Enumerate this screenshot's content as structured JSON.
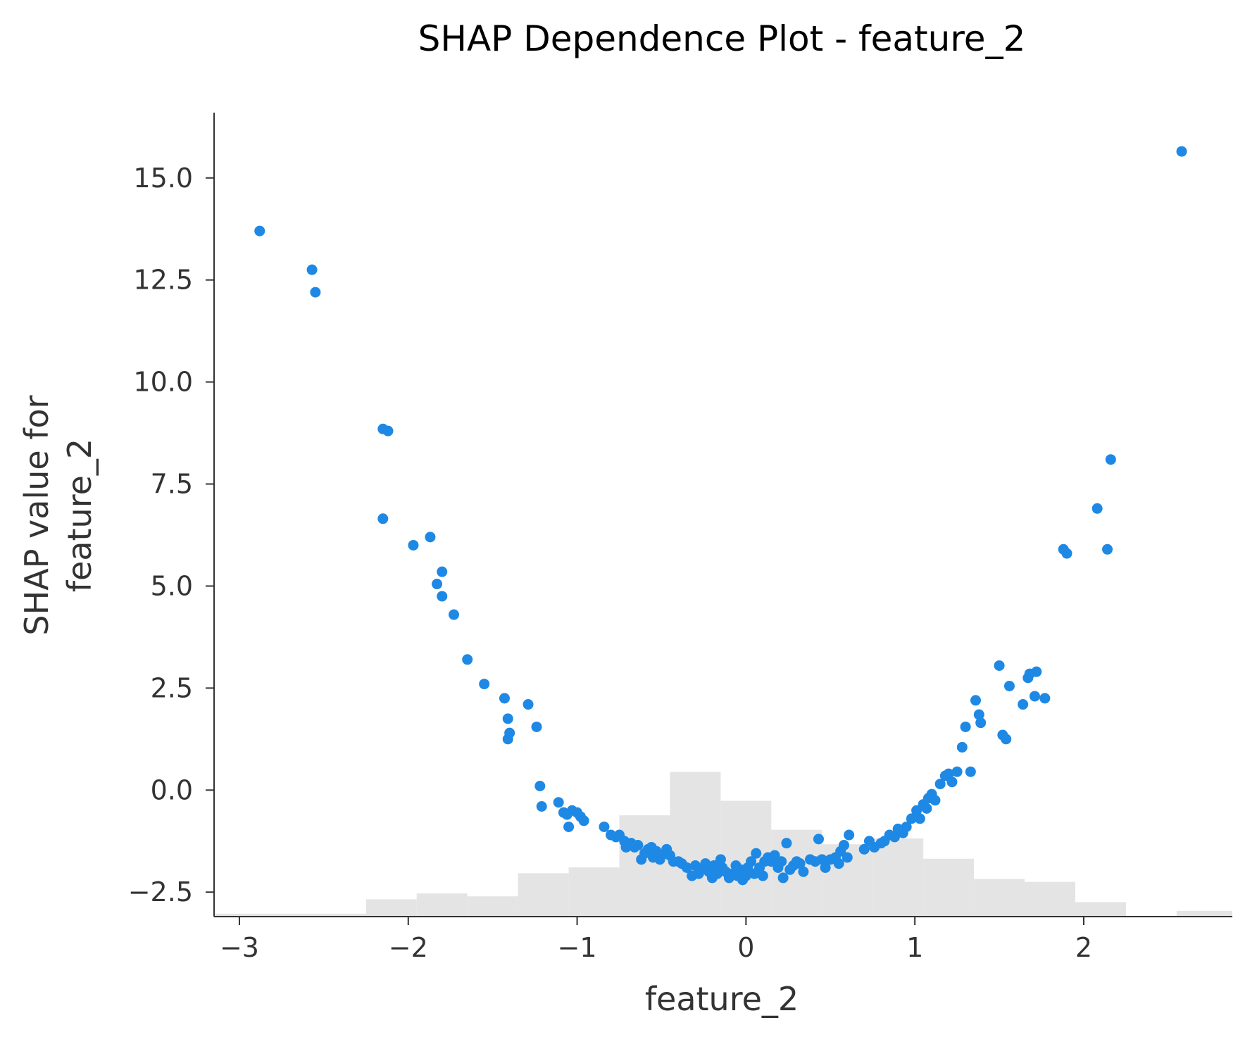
{
  "chart_data": {
    "type": "scatter",
    "title": "SHAP Dependence Plot - feature_2",
    "xlabel": "feature_2",
    "ylabel": [
      "SHAP value for",
      "feature_2"
    ],
    "xlim": [
      -3.15,
      2.88
    ],
    "ylim": [
      -3.1,
      16.6
    ],
    "xticks": [
      -3,
      -2,
      -1,
      0,
      1,
      2
    ],
    "xtick_labels": [
      "−3",
      "−2",
      "−1",
      "0",
      "1",
      "2"
    ],
    "yticks": [
      -2.5,
      0,
      2.5,
      5,
      7.5,
      10,
      12.5,
      15
    ],
    "ytick_labels": [
      "−2.5",
      "0.0",
      "2.5",
      "5.0",
      "7.5",
      "10.0",
      "12.5",
      "15.0"
    ],
    "grid": false,
    "colors": {
      "points": "#1E88E5",
      "histogram": "#E4E4E4",
      "axis": "#333333",
      "text": "#333333",
      "title": "#000000"
    },
    "histogram": {
      "bin_edges": [
        -3.15,
        -2.85,
        -2.55,
        -2.25,
        -1.95,
        -1.65,
        -1.35,
        -1.05,
        -0.75,
        -0.45,
        -0.15,
        0.15,
        0.45,
        0.75,
        1.05,
        1.35,
        1.65,
        1.95,
        2.25,
        2.55,
        2.88
      ],
      "counts": [
        1,
        1,
        1,
        6,
        8,
        7,
        15,
        17,
        35,
        50,
        40,
        30,
        25,
        27,
        20,
        13,
        12,
        5,
        0,
        2
      ]
    },
    "series": [
      {
        "name": "feature_2",
        "points": [
          [
            -2.88,
            13.7
          ],
          [
            -2.57,
            12.75
          ],
          [
            -2.55,
            12.2
          ],
          [
            -2.15,
            8.85
          ],
          [
            -2.12,
            8.8
          ],
          [
            -2.15,
            6.65
          ],
          [
            -1.97,
            6.0
          ],
          [
            -1.87,
            6.2
          ],
          [
            -1.83,
            5.05
          ],
          [
            -1.8,
            5.35
          ],
          [
            -1.8,
            4.75
          ],
          [
            -1.73,
            4.3
          ],
          [
            -1.65,
            3.2
          ],
          [
            -1.55,
            2.6
          ],
          [
            -1.43,
            2.25
          ],
          [
            -1.41,
            1.75
          ],
          [
            -1.4,
            1.4
          ],
          [
            -1.41,
            1.25
          ],
          [
            -1.29,
            2.1
          ],
          [
            -1.24,
            1.55
          ],
          [
            -1.22,
            0.1
          ],
          [
            -1.21,
            -0.4
          ],
          [
            -1.11,
            -0.3
          ],
          [
            -1.08,
            -0.55
          ],
          [
            -1.06,
            -0.6
          ],
          [
            -1.05,
            -0.9
          ],
          [
            -1.03,
            -0.5
          ],
          [
            -1.0,
            -0.55
          ],
          [
            -0.98,
            -0.65
          ],
          [
            -0.96,
            -0.75
          ],
          [
            -0.84,
            -0.9
          ],
          [
            -0.8,
            -1.1
          ],
          [
            -0.77,
            -1.15
          ],
          [
            -0.75,
            -1.1
          ],
          [
            -0.72,
            -1.25
          ],
          [
            -0.71,
            -1.4
          ],
          [
            -0.7,
            -1.35
          ],
          [
            -0.68,
            -1.3
          ],
          [
            -0.66,
            -1.4
          ],
          [
            -0.64,
            -1.35
          ],
          [
            -0.62,
            -1.7
          ],
          [
            -0.6,
            -1.55
          ],
          [
            -0.58,
            -1.45
          ],
          [
            -0.56,
            -1.4
          ],
          [
            -0.55,
            -1.65
          ],
          [
            -0.53,
            -1.5
          ],
          [
            -0.51,
            -1.7
          ],
          [
            -0.5,
            -1.6
          ],
          [
            -0.47,
            -1.45
          ],
          [
            -0.45,
            -1.6
          ],
          [
            -0.43,
            -1.75
          ],
          [
            -0.4,
            -1.75
          ],
          [
            -0.38,
            -1.8
          ],
          [
            -0.35,
            -1.9
          ],
          [
            -0.32,
            -2.1
          ],
          [
            -0.3,
            -1.85
          ],
          [
            -0.28,
            -2.05
          ],
          [
            -0.26,
            -1.95
          ],
          [
            -0.24,
            -1.8
          ],
          [
            -0.22,
            -2.0
          ],
          [
            -0.2,
            -2.15
          ],
          [
            -0.19,
            -1.85
          ],
          [
            -0.17,
            -2.05
          ],
          [
            -0.15,
            -1.7
          ],
          [
            -0.14,
            -1.9
          ],
          [
            -0.12,
            -2.0
          ],
          [
            -0.1,
            -2.15
          ],
          [
            -0.08,
            -2.05
          ],
          [
            -0.06,
            -1.85
          ],
          [
            -0.05,
            -2.1
          ],
          [
            -0.03,
            -1.95
          ],
          [
            -0.02,
            -2.2
          ],
          [
            0.0,
            -2.1
          ],
          [
            0.01,
            -1.9
          ],
          [
            0.03,
            -1.75
          ],
          [
            0.05,
            -2.05
          ],
          [
            0.06,
            -1.55
          ],
          [
            0.08,
            -1.9
          ],
          [
            0.1,
            -2.1
          ],
          [
            0.11,
            -1.75
          ],
          [
            0.13,
            -1.65
          ],
          [
            0.15,
            -1.75
          ],
          [
            0.17,
            -1.6
          ],
          [
            0.19,
            -1.9
          ],
          [
            0.21,
            -1.75
          ],
          [
            0.22,
            -2.15
          ],
          [
            0.24,
            -1.3
          ],
          [
            0.26,
            -1.95
          ],
          [
            0.28,
            -1.85
          ],
          [
            0.3,
            -1.75
          ],
          [
            0.32,
            -1.8
          ],
          [
            0.34,
            -2.0
          ],
          [
            0.38,
            -1.7
          ],
          [
            0.41,
            -1.75
          ],
          [
            0.43,
            -1.2
          ],
          [
            0.45,
            -1.7
          ],
          [
            0.47,
            -1.9
          ],
          [
            0.5,
            -1.7
          ],
          [
            0.53,
            -1.65
          ],
          [
            0.55,
            -1.8
          ],
          [
            0.56,
            -1.5
          ],
          [
            0.58,
            -1.35
          ],
          [
            0.6,
            -1.65
          ],
          [
            0.61,
            -1.1
          ],
          [
            0.7,
            -1.45
          ],
          [
            0.73,
            -1.25
          ],
          [
            0.76,
            -1.4
          ],
          [
            0.8,
            -1.3
          ],
          [
            0.82,
            -1.25
          ],
          [
            0.85,
            -1.1
          ],
          [
            0.88,
            -1.15
          ],
          [
            0.9,
            -0.95
          ],
          [
            0.93,
            -1.05
          ],
          [
            0.95,
            -0.9
          ],
          [
            0.98,
            -0.7
          ],
          [
            1.01,
            -0.5
          ],
          [
            1.03,
            -0.7
          ],
          [
            1.05,
            -0.35
          ],
          [
            1.07,
            -0.45
          ],
          [
            1.08,
            -0.2
          ],
          [
            1.1,
            -0.1
          ],
          [
            1.12,
            -0.25
          ],
          [
            1.15,
            0.15
          ],
          [
            1.18,
            0.35
          ],
          [
            1.2,
            0.4
          ],
          [
            1.22,
            0.2
          ],
          [
            1.25,
            0.45
          ],
          [
            1.28,
            1.05
          ],
          [
            1.3,
            1.55
          ],
          [
            1.33,
            0.45
          ],
          [
            1.36,
            2.2
          ],
          [
            1.38,
            1.85
          ],
          [
            1.39,
            1.65
          ],
          [
            1.5,
            3.05
          ],
          [
            1.52,
            1.35
          ],
          [
            1.54,
            1.25
          ],
          [
            1.56,
            2.55
          ],
          [
            1.64,
            2.1
          ],
          [
            1.67,
            2.75
          ],
          [
            1.68,
            2.85
          ],
          [
            1.71,
            2.3
          ],
          [
            1.72,
            2.9
          ],
          [
            1.77,
            2.25
          ],
          [
            1.88,
            5.9
          ],
          [
            1.9,
            5.8
          ],
          [
            2.08,
            6.9
          ],
          [
            2.14,
            5.9
          ],
          [
            2.16,
            8.1
          ],
          [
            2.58,
            15.65
          ]
        ]
      }
    ]
  }
}
